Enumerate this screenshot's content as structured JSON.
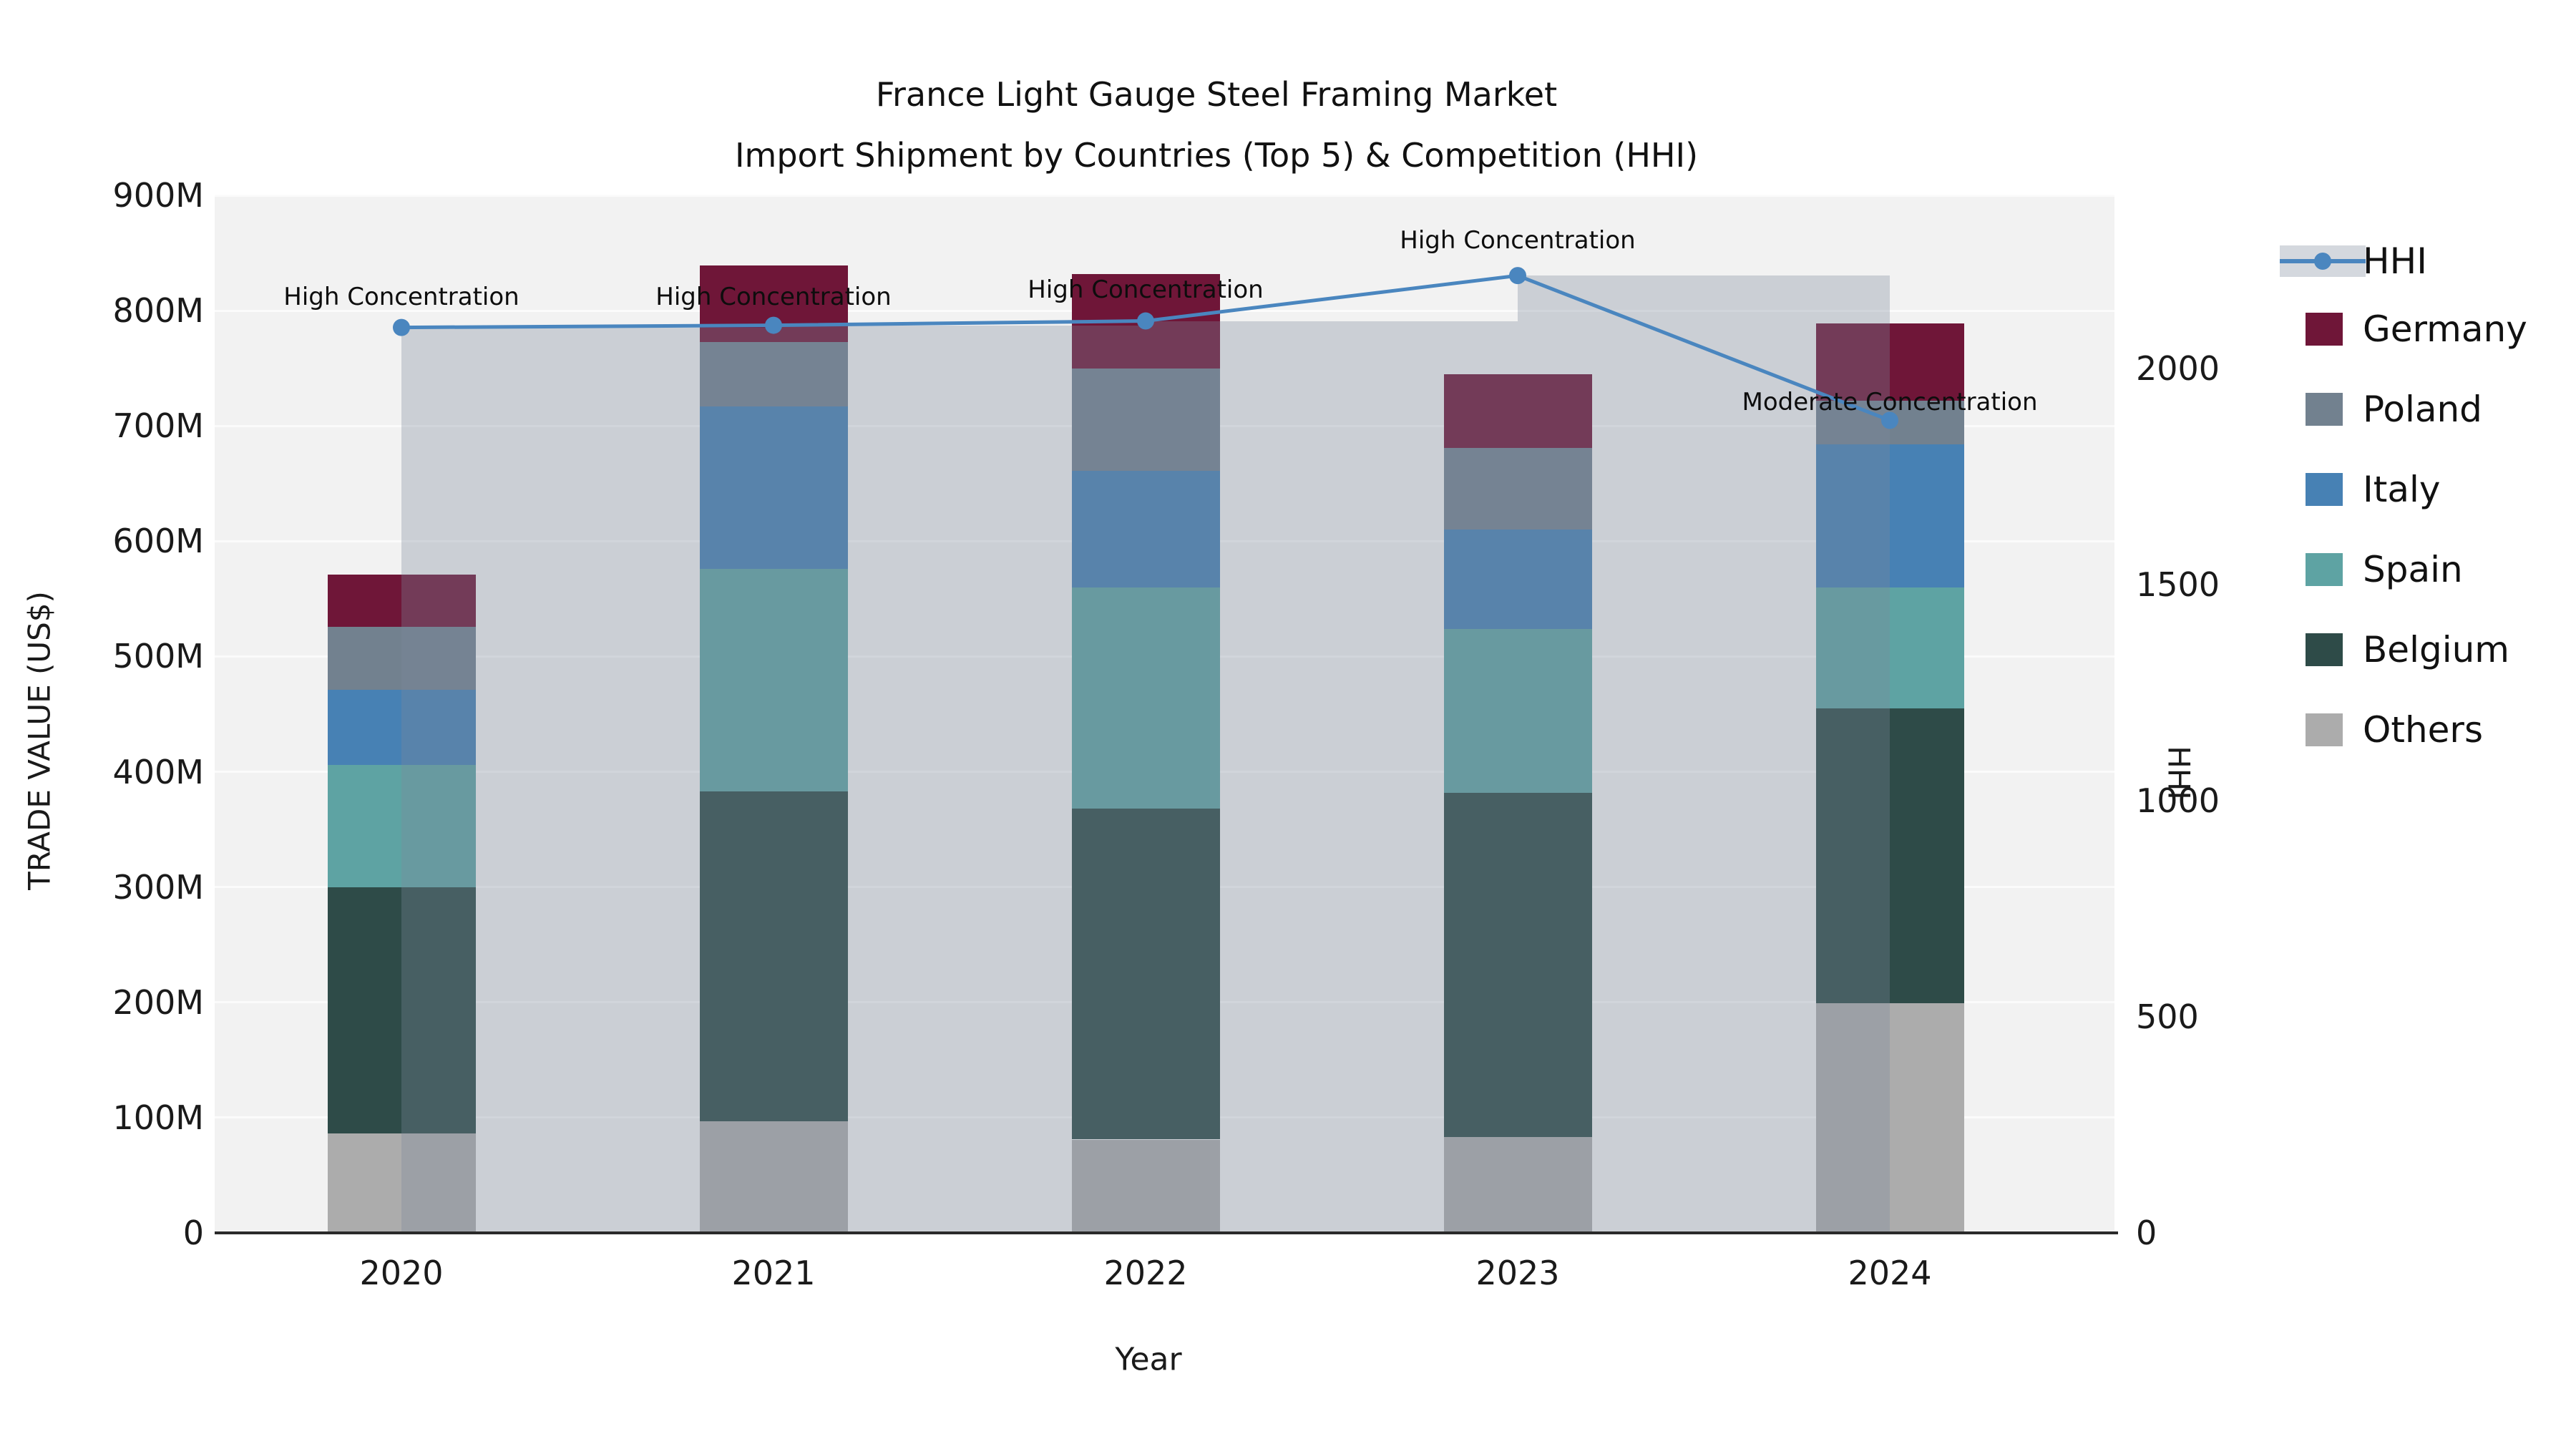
{
  "title": {
    "line1": "France Light Gauge Steel Framing Market",
    "line2": "Import Shipment by Countries (Top 5) & Competition (HHI)"
  },
  "axes": {
    "x": {
      "label": "Year",
      "ticks": [
        "2020",
        "2021",
        "2022",
        "2023",
        "2024"
      ]
    },
    "y_left": {
      "label": "TRADE VALUE (US$)",
      "ticks": [
        {
          "label": "0",
          "value": 0
        },
        {
          "label": "100M",
          "value": 100
        },
        {
          "label": "200M",
          "value": 200
        },
        {
          "label": "300M",
          "value": 300
        },
        {
          "label": "400M",
          "value": 400
        },
        {
          "label": "500M",
          "value": 500
        },
        {
          "label": "600M",
          "value": 600
        },
        {
          "label": "700M",
          "value": 700
        },
        {
          "label": "800M",
          "value": 800
        },
        {
          "label": "900M",
          "value": 900
        }
      ]
    },
    "y_right": {
      "label": "HHI",
      "ticks": [
        {
          "label": "0",
          "value": 0
        },
        {
          "label": "500",
          "value": 500
        },
        {
          "label": "1000",
          "value": 1000
        },
        {
          "label": "1500",
          "value": 1500
        },
        {
          "label": "2000",
          "value": 2000
        }
      ]
    }
  },
  "legend": [
    {
      "label": "HHI",
      "type": "line",
      "color": "#4a86bf"
    },
    {
      "label": "Germany",
      "type": "box",
      "color": "#6f1638"
    },
    {
      "label": "Poland",
      "type": "box",
      "color": "#72818f"
    },
    {
      "label": "Italy",
      "type": "box",
      "color": "#4781b4"
    },
    {
      "label": "Spain",
      "type": "box",
      "color": "#5ea3a3"
    },
    {
      "label": "Belgium",
      "type": "box",
      "color": "#2e4b48"
    },
    {
      "label": "Others",
      "type": "box",
      "color": "#acacac"
    }
  ],
  "chart_data": {
    "type": "combo-stacked-bar-line",
    "categories": [
      "2020",
      "2021",
      "2022",
      "2023",
      "2024"
    ],
    "stacked_series": [
      {
        "name": "Others",
        "color": "#acacac",
        "values": [
          86,
          97,
          81,
          83,
          199
        ]
      },
      {
        "name": "Belgium",
        "color": "#2e4b48",
        "values": [
          214,
          286,
          287,
          299,
          256
        ]
      },
      {
        "name": "Spain",
        "color": "#5ea3a3",
        "values": [
          106,
          193,
          192,
          142,
          105
        ]
      },
      {
        "name": "Italy",
        "color": "#4781b4",
        "values": [
          65,
          141,
          101,
          86,
          124
        ]
      },
      {
        "name": "Poland",
        "color": "#72818f",
        "values": [
          55,
          56,
          89,
          71,
          38
        ]
      },
      {
        "name": "Germany",
        "color": "#6f1638",
        "values": [
          45,
          66,
          82,
          64,
          67
        ]
      }
    ],
    "bar_totals_musd": [
      571,
      839,
      832,
      745,
      789
    ],
    "line_series": {
      "name": "HHI",
      "axis": "right",
      "color": "#4a86bf",
      "band_color": "rgba(125,136,155,0.33)",
      "values": [
        2095,
        2100,
        2110,
        2215,
        1880
      ]
    },
    "annotations": [
      {
        "text": "High Concentration",
        "category": "2020"
      },
      {
        "text": "High Concentration",
        "category": "2021"
      },
      {
        "text": "High Concentration",
        "category": "2022"
      },
      {
        "text": "High Concentration",
        "category": "2023"
      },
      {
        "text": "Moderate Concentration",
        "category": "2024"
      }
    ],
    "xlabel": "Year",
    "ylabel_left": "TRADE VALUE (US$)",
    "ylabel_right": "HHI",
    "ylim_left_musd": [
      0,
      900
    ],
    "ylim_right_hhi": [
      0,
      2400
    ],
    "grid": true,
    "legend_position": "right"
  },
  "colors": {
    "plot_background": "#f2f2f2",
    "page_background": "#ffffff",
    "gridline": "#fbfbfb",
    "axis_line": "#2a2a2a",
    "text": "#1a1a1a",
    "hhi_line": "#4a86bf",
    "hhi_band": "rgba(125,136,155,0.33)"
  }
}
